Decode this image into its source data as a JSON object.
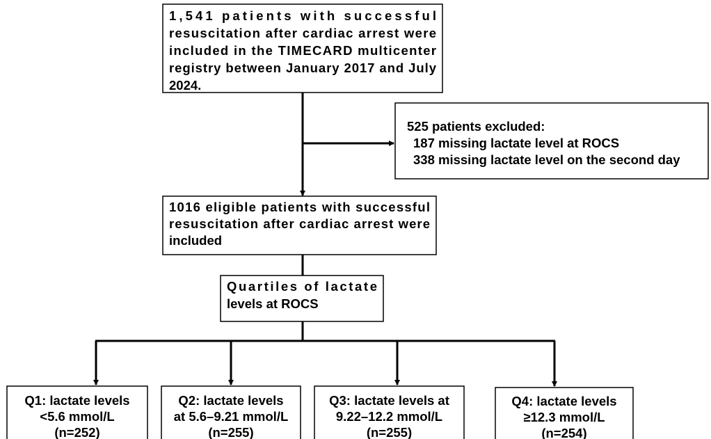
{
  "nodes": [
    {
      "lines": [
        "1,541 patients with successful",
        "resuscitation after cardiac arrest were",
        "included in the TIMECARD multicenter",
        "registry between January 2017 and July",
        "2024."
      ]
    },
    {
      "lines": [
        "525 patients excluded:",
        "187 missing lactate level at ROCS",
        "338 missing lactate level on the second day"
      ]
    },
    {
      "lines": [
        "1016 eligible patients with successful",
        "resuscitation after cardiac arrest were",
        "included"
      ]
    },
    {
      "lines": [
        "Quartiles of lactate",
        "levels at ROCS"
      ]
    },
    {
      "lines": [
        "Q1: lactate levels",
        "<5.6 mmol/L",
        "(n=252)"
      ]
    },
    {
      "lines": [
        "Q2: lactate levels",
        "at 5.6–9.21 mmol/L",
        "(n=255)"
      ]
    },
    {
      "lines": [
        "Q3: lactate levels at",
        "9.22–12.2 mmol/L",
        "(n=255)"
      ]
    },
    {
      "lines": [
        "Q4: lactate levels",
        "≥12.3 mmol/L",
        "(n=254)"
      ]
    }
  ]
}
